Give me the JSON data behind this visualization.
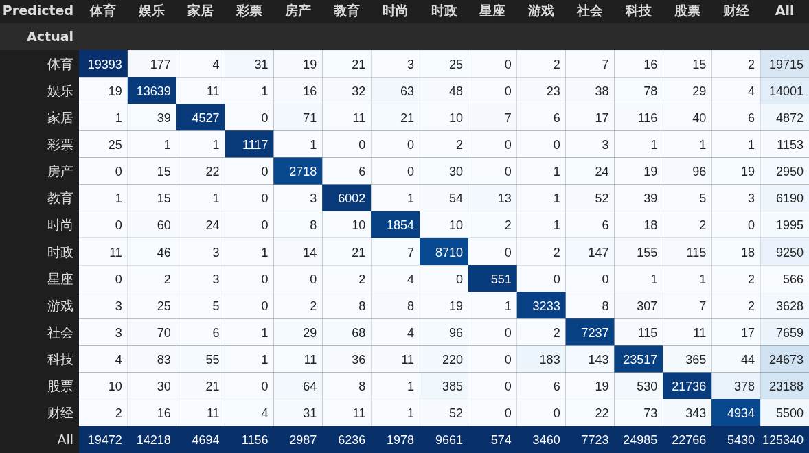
{
  "chart_data": {
    "type": "heatmap",
    "xlabel": "Predicted",
    "ylabel": "Actual",
    "data_labels": true,
    "categories": [
      "体育",
      "娱乐",
      "家居",
      "彩票",
      "房产",
      "教育",
      "时尚",
      "时政",
      "星座",
      "游戏",
      "社会",
      "科技",
      "股票",
      "财经",
      "All"
    ],
    "y_categories": [
      "体育",
      "娱乐",
      "家居",
      "彩票",
      "房产",
      "教育",
      "时尚",
      "时政",
      "星座",
      "游戏",
      "社会",
      "科技",
      "股票",
      "财经",
      "All"
    ],
    "cells": [
      [
        19393,
        177,
        4,
        31,
        19,
        21,
        3,
        25,
        0,
        2,
        7,
        16,
        15,
        2,
        19715
      ],
      [
        19,
        13639,
        11,
        1,
        16,
        32,
        63,
        48,
        0,
        23,
        38,
        78,
        29,
        4,
        14001
      ],
      [
        1,
        39,
        4527,
        0,
        71,
        11,
        21,
        10,
        7,
        6,
        17,
        116,
        40,
        6,
        4872
      ],
      [
        25,
        1,
        1,
        1117,
        1,
        0,
        0,
        2,
        0,
        0,
        3,
        1,
        1,
        1,
        1153
      ],
      [
        0,
        15,
        22,
        0,
        2718,
        6,
        0,
        30,
        0,
        1,
        24,
        19,
        96,
        19,
        2950
      ],
      [
        1,
        15,
        1,
        0,
        3,
        6002,
        1,
        54,
        13,
        1,
        52,
        39,
        5,
        3,
        6190
      ],
      [
        0,
        60,
        24,
        0,
        8,
        10,
        1854,
        10,
        2,
        1,
        6,
        18,
        2,
        0,
        1995
      ],
      [
        11,
        46,
        3,
        1,
        14,
        21,
        7,
        8710,
        0,
        2,
        147,
        155,
        115,
        18,
        9250
      ],
      [
        0,
        2,
        3,
        0,
        0,
        2,
        4,
        0,
        551,
        0,
        0,
        1,
        1,
        2,
        566
      ],
      [
        3,
        25,
        5,
        0,
        2,
        8,
        8,
        19,
        1,
        3233,
        8,
        307,
        7,
        2,
        3628
      ],
      [
        3,
        70,
        6,
        1,
        29,
        68,
        4,
        96,
        0,
        2,
        7237,
        115,
        11,
        17,
        7659
      ],
      [
        4,
        83,
        55,
        1,
        11,
        36,
        11,
        220,
        0,
        183,
        143,
        23517,
        365,
        44,
        24673
      ],
      [
        10,
        30,
        21,
        0,
        64,
        8,
        1,
        385,
        0,
        6,
        19,
        530,
        21736,
        378,
        23188
      ],
      [
        2,
        16,
        11,
        4,
        31,
        11,
        1,
        52,
        0,
        0,
        22,
        73,
        343,
        4934,
        5500
      ],
      [
        19472,
        14218,
        4694,
        1156,
        2987,
        6236,
        1978,
        9661,
        574,
        3460,
        7723,
        24985,
        22766,
        5430,
        125340
      ]
    ]
  }
}
